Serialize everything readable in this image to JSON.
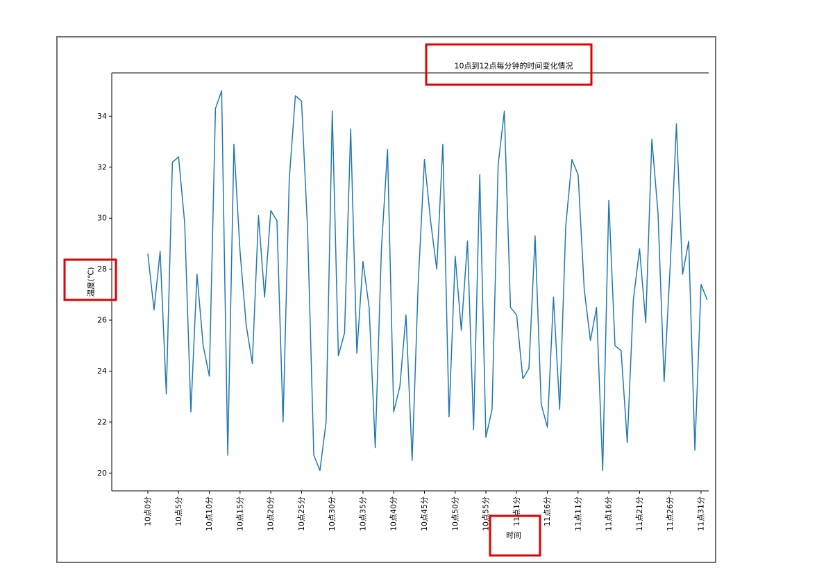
{
  "colors": {
    "figure_border": "#707070",
    "annotation_box": "#e00000",
    "axes": "#000000"
  },
  "chart_data": {
    "type": "line",
    "title": "10点到12点每分钟的时间变化情况",
    "xlabel": "时间",
    "ylabel": "温度(℃)",
    "x_tick_labels": [
      "10点0分",
      "10点5分",
      "10点10分",
      "10点15分",
      "10点20分",
      "10点25分",
      "10点30分",
      "10点35分",
      "10点40分",
      "10点45分",
      "10点50分",
      "10点55分",
      "11点1分",
      "11点6分",
      "11点11分",
      "11点16分",
      "11点21分",
      "11点26分",
      "11点31分"
    ],
    "y_ticks": [
      20,
      22,
      24,
      26,
      28,
      30,
      32,
      34
    ],
    "ylim": [
      19.3,
      35.7
    ],
    "grid": false,
    "series": [
      {
        "color": "#1f77b4",
        "values": [
          28.6,
          26.4,
          28.7,
          23.1,
          32.2,
          32.4,
          29.8,
          22.4,
          27.8,
          25.0,
          23.8,
          34.3,
          35.0,
          20.7,
          32.9,
          28.7,
          25.8,
          24.3,
          30.1,
          26.9,
          30.3,
          29.9,
          22.0,
          31.5,
          34.8,
          34.6,
          29.5,
          20.7,
          20.1,
          22.0,
          34.2,
          24.6,
          25.5,
          33.5,
          24.7,
          28.3,
          26.5,
          21.0,
          28.8,
          32.7,
          22.4,
          23.4,
          26.2,
          20.5,
          27.5,
          32.3,
          29.9,
          28.0,
          32.9,
          22.2,
          28.5,
          25.6,
          29.1,
          21.7,
          31.7,
          21.4,
          22.5,
          32.1,
          34.2,
          26.5,
          26.2,
          23.7,
          24.1,
          29.3,
          22.7,
          21.8,
          26.9,
          22.5,
          29.7,
          32.3,
          31.7,
          27.2,
          25.2,
          26.5,
          20.1,
          30.7,
          25.0,
          24.8,
          21.2,
          26.8,
          28.8,
          25.9,
          33.1,
          30.2,
          23.6,
          28.2,
          33.7,
          27.8,
          29.1,
          20.9,
          27.4,
          26.8
        ]
      }
    ]
  }
}
